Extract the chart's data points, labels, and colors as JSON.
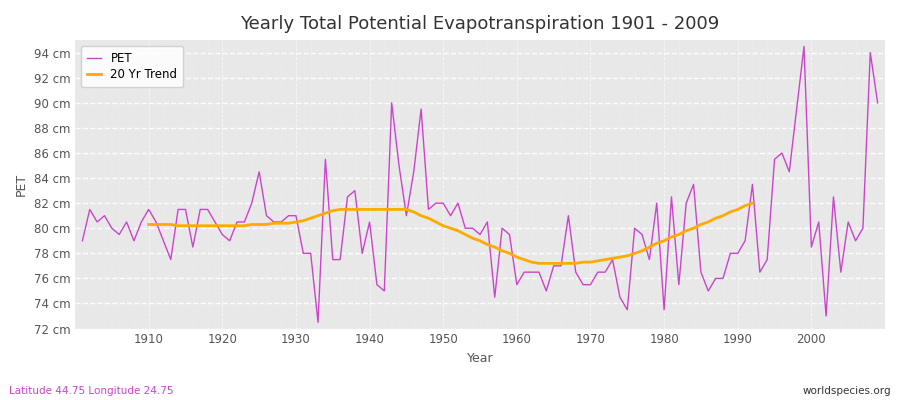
{
  "title": "Yearly Total Potential Evapotranspiration 1901 - 2009",
  "xlabel": "Year",
  "ylabel": "PET",
  "bottom_left_label": "Latitude 44.75 Longitude 24.75",
  "bottom_right_label": "worldspecies.org",
  "pet_color": "#cc44cc",
  "trend_color": "#ffaa00",
  "background_color": "#ffffff",
  "plot_bg_color": "#e8e8e8",
  "ylim": [
    72,
    95
  ],
  "ytick_step": 2,
  "xlim": [
    1901,
    2009
  ],
  "pet_values": [
    79.0,
    81.5,
    80.5,
    81.0,
    80.0,
    79.5,
    80.5,
    79.0,
    80.5,
    81.5,
    80.5,
    79.0,
    77.5,
    81.5,
    81.5,
    78.5,
    81.5,
    81.5,
    80.5,
    79.5,
    79.0,
    80.5,
    80.5,
    82.0,
    84.5,
    81.0,
    80.5,
    80.5,
    81.0,
    81.0,
    78.0,
    78.0,
    72.5,
    85.5,
    77.5,
    77.5,
    82.5,
    83.0,
    78.0,
    80.5,
    75.5,
    75.0,
    90.0,
    85.0,
    81.0,
    84.5,
    89.5,
    81.5,
    82.0,
    82.0,
    81.0,
    82.0,
    80.0,
    80.0,
    79.5,
    80.5,
    74.5,
    80.0,
    79.5,
    75.5,
    76.5,
    76.5,
    76.5,
    75.0,
    77.0,
    77.0,
    81.0,
    76.5,
    75.5,
    75.5,
    76.5,
    76.5,
    77.5,
    74.5,
    73.5,
    80.0,
    79.5,
    77.5,
    82.0,
    73.5,
    82.5,
    75.5,
    82.0,
    83.5,
    76.5,
    75.0,
    76.0,
    76.0,
    78.0,
    78.0,
    79.0,
    83.5,
    76.5,
    77.5,
    85.5,
    86.0,
    84.5,
    89.5,
    94.5,
    78.5,
    80.5,
    73.0,
    82.5,
    76.5,
    80.5,
    79.0,
    80.0,
    94.0,
    90.0
  ],
  "trend_start_year": 1910,
  "trend_values": [
    80.3,
    80.3,
    80.3,
    80.3,
    80.2,
    80.2,
    80.2,
    80.2,
    80.2,
    80.2,
    80.2,
    80.2,
    80.2,
    80.2,
    80.3,
    80.3,
    80.3,
    80.4,
    80.4,
    80.4,
    80.5,
    80.6,
    80.8,
    81.0,
    81.2,
    81.4,
    81.5,
    81.5,
    81.5,
    81.5,
    81.5,
    81.5,
    81.5,
    81.5,
    81.5,
    81.5,
    81.3,
    81.0,
    80.8,
    80.5,
    80.2,
    80.0,
    79.8,
    79.5,
    79.2,
    79.0,
    78.7,
    78.5,
    78.2,
    78.0,
    77.7,
    77.5,
    77.3,
    77.2,
    77.2,
    77.2,
    77.2,
    77.2,
    77.2,
    77.3,
    77.3,
    77.4,
    77.5,
    77.6,
    77.7,
    77.8,
    78.0,
    78.2,
    78.5,
    78.8,
    79.0,
    79.3,
    79.5,
    79.8,
    80.0,
    80.3,
    80.5,
    80.8,
    81.0,
    81.3,
    81.5,
    81.8,
    82.0
  ]
}
